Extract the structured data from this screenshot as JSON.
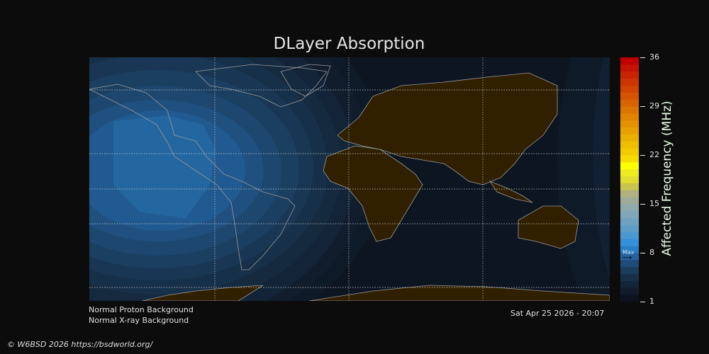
{
  "title": "DLayer Absorption",
  "colorbar": {
    "label": "Affected Frequency (MHz)",
    "ticks": [
      "36",
      "29",
      "22",
      "15",
      "8",
      "1"
    ],
    "range": [
      1,
      36
    ],
    "max_marker_label": "Max",
    "max_marker_value": 7,
    "colors": [
      "#0d1220",
      "#111b2b",
      "#142538",
      "#173048",
      "#1b3d5e",
      "#1f4b78",
      "#2462a0",
      "#2a7fc4",
      "#3490d8",
      "#4a98d0",
      "#5d9dc8",
      "#6fa2c0",
      "#80a6b8",
      "#90a9ac",
      "#a0aa98",
      "#b0b080",
      "#c8c450",
      "#e0dc30",
      "#ecec20",
      "#ffff00",
      "#f6dc00",
      "#f2cc00",
      "#efbe00",
      "#eab000",
      "#e6a000",
      "#e49200",
      "#e08400",
      "#dc7400",
      "#d86400",
      "#d45400",
      "#d04400",
      "#cc3400",
      "#c82400",
      "#c41400",
      "#c00000"
    ]
  },
  "status": {
    "proton": "Normal Proton Background",
    "xray": "Normal X-ray Background",
    "timestamp": "Sat Apr 25 2026 - 20:07"
  },
  "footer": {
    "copyright": "© W6BSD 2026 https://bsdworld.org/"
  },
  "colors": {
    "background": "#0c0c0c",
    "night": "#0d1521",
    "land": "#302000",
    "coast": "#9a9a9a",
    "peak": "#2466a0"
  }
}
